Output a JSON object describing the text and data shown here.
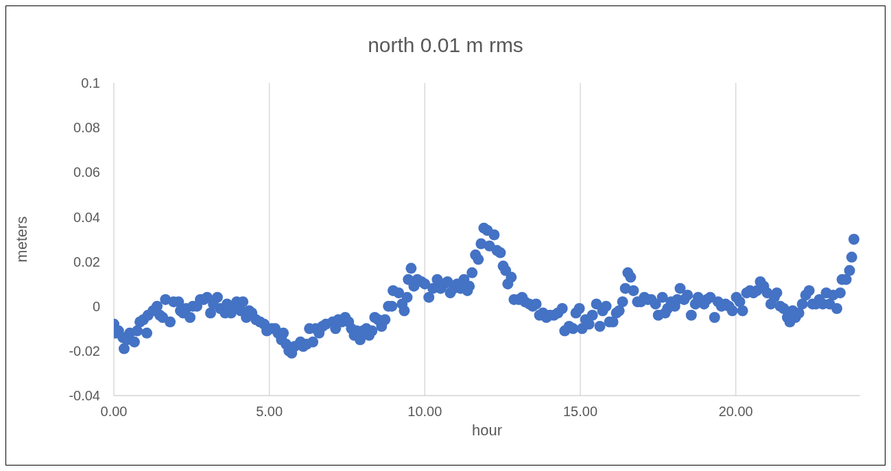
{
  "chart_data": {
    "type": "scatter",
    "title": "north 0.01 m rms",
    "xlabel": "hour",
    "ylabel": "meters",
    "color": "#4472c4",
    "marker": "circle",
    "grid": "x",
    "xlim": [
      0,
      24
    ],
    "xticks": [
      {
        "value": 0,
        "label": "0.00"
      },
      {
        "value": 5,
        "label": "5.00"
      },
      {
        "value": 10,
        "label": "10.00"
      },
      {
        "value": 15,
        "label": "15.00"
      },
      {
        "value": 20,
        "label": "20.00"
      }
    ],
    "ylim": [
      -0.04,
      0.1
    ],
    "yticks": [
      -0.04,
      -0.02,
      0,
      0.02,
      0.04,
      0.06,
      0.08,
      0.1
    ],
    "x": [
      0.0,
      0.07,
      0.15,
      0.29,
      0.33,
      0.42,
      0.51,
      0.66,
      0.75,
      0.84,
      0.95,
      1.06,
      1.1,
      1.26,
      1.39,
      1.48,
      1.57,
      1.66,
      1.81,
      1.92,
      2.08,
      2.14,
      2.23,
      2.32,
      2.45,
      2.54,
      2.67,
      2.78,
      2.89,
      3.0,
      3.11,
      3.2,
      3.33,
      3.42,
      3.58,
      3.64,
      3.77,
      3.86,
      3.95,
      4.08,
      4.15,
      4.26,
      4.35,
      4.44,
      4.57,
      4.7,
      4.83,
      4.92,
      5.08,
      5.19,
      5.28,
      5.39,
      5.45,
      5.54,
      5.63,
      5.72,
      5.81,
      6.0,
      6.09,
      6.2,
      6.29,
      6.4,
      6.49,
      6.6,
      6.71,
      6.82,
      7.04,
      7.13,
      7.22,
      7.33,
      7.44,
      7.55,
      7.64,
      7.73,
      7.81,
      7.92,
      8.01,
      8.12,
      8.21,
      8.3,
      8.39,
      8.5,
      8.61,
      8.72,
      8.83,
      8.94,
      8.98,
      9.16,
      9.27,
      9.34,
      9.43,
      9.47,
      9.56,
      9.65,
      9.76,
      9.89,
      10.0,
      10.13,
      10.26,
      10.4,
      10.51,
      10.62,
      10.73,
      10.82,
      10.93,
      11.04,
      11.15,
      11.26,
      11.37,
      11.43,
      11.52,
      11.63,
      11.72,
      11.81,
      11.9,
      12.01,
      12.08,
      12.23,
      12.32,
      12.43,
      12.52,
      12.6,
      12.67,
      12.78,
      12.87,
      13.02,
      13.13,
      13.22,
      13.36,
      13.47,
      13.58,
      13.69,
      13.8,
      13.91,
      14.02,
      14.15,
      14.28,
      14.42,
      14.5,
      14.64,
      14.77,
      14.86,
      14.97,
      15.06,
      15.17,
      15.28,
      15.39,
      15.52,
      15.63,
      15.72,
      15.83,
      15.94,
      16.05,
      16.16,
      16.25,
      16.36,
      16.45,
      16.53,
      16.62,
      16.71,
      16.84,
      16.95,
      17.06,
      17.17,
      17.28,
      17.42,
      17.51,
      17.64,
      17.73,
      17.81,
      17.92,
      18.04,
      18.12,
      18.21,
      18.34,
      18.45,
      18.57,
      18.7,
      18.79,
      18.98,
      19.07,
      19.18,
      19.32,
      19.43,
      19.54,
      19.67,
      19.78,
      19.89,
      20.02,
      20.13,
      20.22,
      20.35,
      20.46,
      20.57,
      20.68,
      20.79,
      20.9,
      21.01,
      21.13,
      21.24,
      21.32,
      21.43,
      21.54,
      21.66,
      21.74,
      21.83,
      21.92,
      22.03,
      22.14,
      22.25,
      22.36,
      22.47,
      22.58,
      22.69,
      22.8,
      22.91,
      23.02,
      23.13,
      23.25,
      23.36,
      23.42,
      23.55,
      23.66,
      23.73,
      23.8
    ],
    "values": [
      -0.008,
      -0.012,
      -0.011,
      -0.014,
      -0.019,
      -0.015,
      -0.012,
      -0.016,
      -0.011,
      -0.007,
      -0.006,
      -0.012,
      -0.004,
      -0.002,
      0.0,
      -0.004,
      -0.005,
      0.003,
      -0.007,
      0.002,
      0.002,
      -0.002,
      -0.003,
      -0.001,
      -0.005,
      0.0,
      0.0,
      0.003,
      0.003,
      0.004,
      -0.003,
      0.001,
      0.004,
      -0.001,
      -0.003,
      0.001,
      -0.003,
      0.0,
      0.002,
      -0.002,
      0.002,
      -0.005,
      -0.002,
      -0.003,
      -0.006,
      -0.007,
      -0.008,
      -0.011,
      -0.01,
      -0.01,
      -0.012,
      -0.015,
      -0.012,
      -0.017,
      -0.02,
      -0.021,
      -0.018,
      -0.016,
      -0.018,
      -0.017,
      -0.01,
      -0.016,
      -0.01,
      -0.012,
      -0.009,
      -0.008,
      -0.007,
      -0.01,
      -0.006,
      -0.007,
      -0.005,
      -0.007,
      -0.01,
      -0.013,
      -0.011,
      -0.015,
      -0.011,
      -0.01,
      -0.013,
      -0.011,
      -0.005,
      -0.006,
      -0.009,
      -0.006,
      0.0,
      0.0,
      0.007,
      0.006,
      0.001,
      -0.002,
      0.004,
      0.012,
      0.017,
      0.009,
      0.012,
      0.011,
      0.01,
      0.004,
      0.008,
      0.012,
      0.008,
      0.01,
      0.011,
      0.006,
      0.008,
      0.01,
      0.008,
      0.012,
      0.007,
      0.009,
      0.015,
      0.023,
      0.021,
      0.028,
      0.035,
      0.034,
      0.027,
      0.032,
      0.025,
      0.024,
      0.018,
      0.016,
      0.01,
      0.013,
      0.003,
      0.003,
      0.004,
      0.002,
      0.001,
      0.0,
      0.001,
      -0.004,
      -0.003,
      -0.005,
      -0.004,
      -0.004,
      -0.003,
      -0.001,
      -0.011,
      -0.009,
      -0.01,
      -0.003,
      -0.001,
      -0.01,
      -0.006,
      -0.008,
      -0.004,
      0.001,
      -0.009,
      -0.002,
      0.0,
      -0.007,
      -0.007,
      -0.003,
      -0.002,
      0.002,
      0.008,
      0.015,
      0.013,
      0.007,
      0.002,
      0.002,
      0.004,
      0.003,
      0.003,
      0.001,
      -0.004,
      0.004,
      -0.003,
      -0.001,
      0.002,
      0.0,
      0.003,
      0.008,
      0.003,
      0.005,
      -0.004,
      0.001,
      0.004,
      0.001,
      0.003,
      0.004,
      -0.005,
      0.002,
      0.0,
      0.001,
      0.0,
      -0.002,
      0.004,
      0.002,
      -0.002,
      0.006,
      0.007,
      0.006,
      0.007,
      0.011,
      0.009,
      0.006,
      0.001,
      0.004,
      0.006,
      0.0,
      -0.001,
      -0.005,
      -0.007,
      -0.002,
      -0.005,
      -0.003,
      0.001,
      0.005,
      0.007,
      0.001,
      0.001,
      0.003,
      0.001,
      0.006,
      0.001,
      0.005,
      -0.001,
      0.006,
      0.012,
      0.012,
      0.016,
      0.022,
      0.03
    ]
  }
}
